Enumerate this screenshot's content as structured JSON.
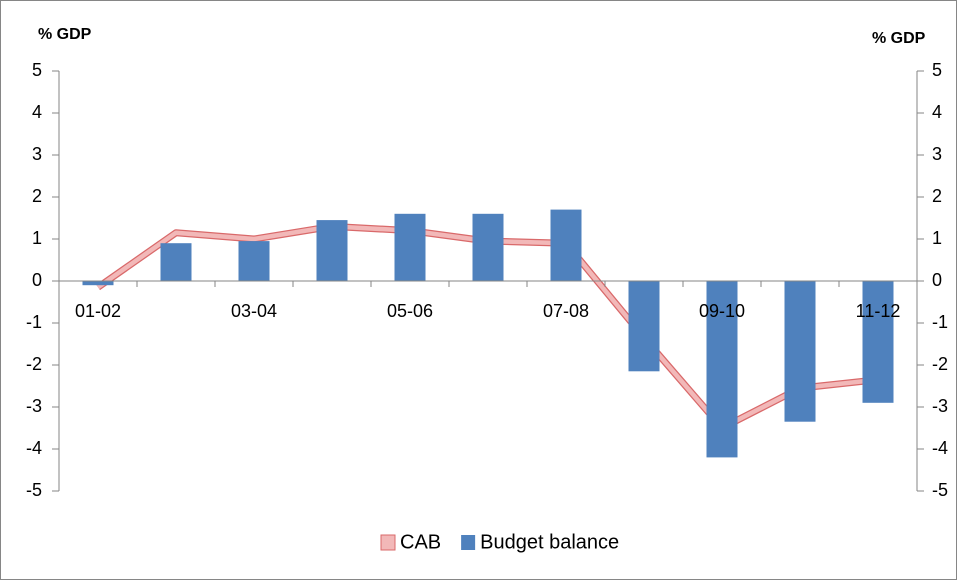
{
  "chart_data": {
    "type": "bar-line",
    "y_label": "% GDP",
    "y2_label": "% GDP",
    "categories": [
      "01-02",
      null,
      "03-04",
      null,
      "05-06",
      null,
      "07-08",
      null,
      "09-10",
      null,
      "11-12"
    ],
    "series": [
      {
        "name": "CAB",
        "type": "line",
        "axis": "y2",
        "color": "#d9696a",
        "fill": "#f2b8b8",
        "values": [
          -0.15,
          1.15,
          1.0,
          1.3,
          1.2,
          0.95,
          0.9,
          -1.35,
          -3.5,
          -2.55,
          -2.35
        ]
      },
      {
        "name": "Budget balance",
        "type": "bar",
        "color": "#4f81bd",
        "values": [
          -0.1,
          0.9,
          0.95,
          1.45,
          1.6,
          1.6,
          1.7,
          -2.15,
          -4.2,
          -3.35,
          -2.9
        ]
      }
    ],
    "ylim": [
      -5,
      5
    ],
    "yticks": [
      -5,
      -4,
      -3,
      -2,
      -1,
      0,
      1,
      2,
      3,
      4,
      5
    ],
    "y2lim": [
      -5,
      5
    ],
    "y2ticks": [
      -5,
      -4,
      -3,
      -2,
      -1,
      0,
      1,
      2,
      3,
      4,
      5
    ],
    "legend": "bottom"
  }
}
